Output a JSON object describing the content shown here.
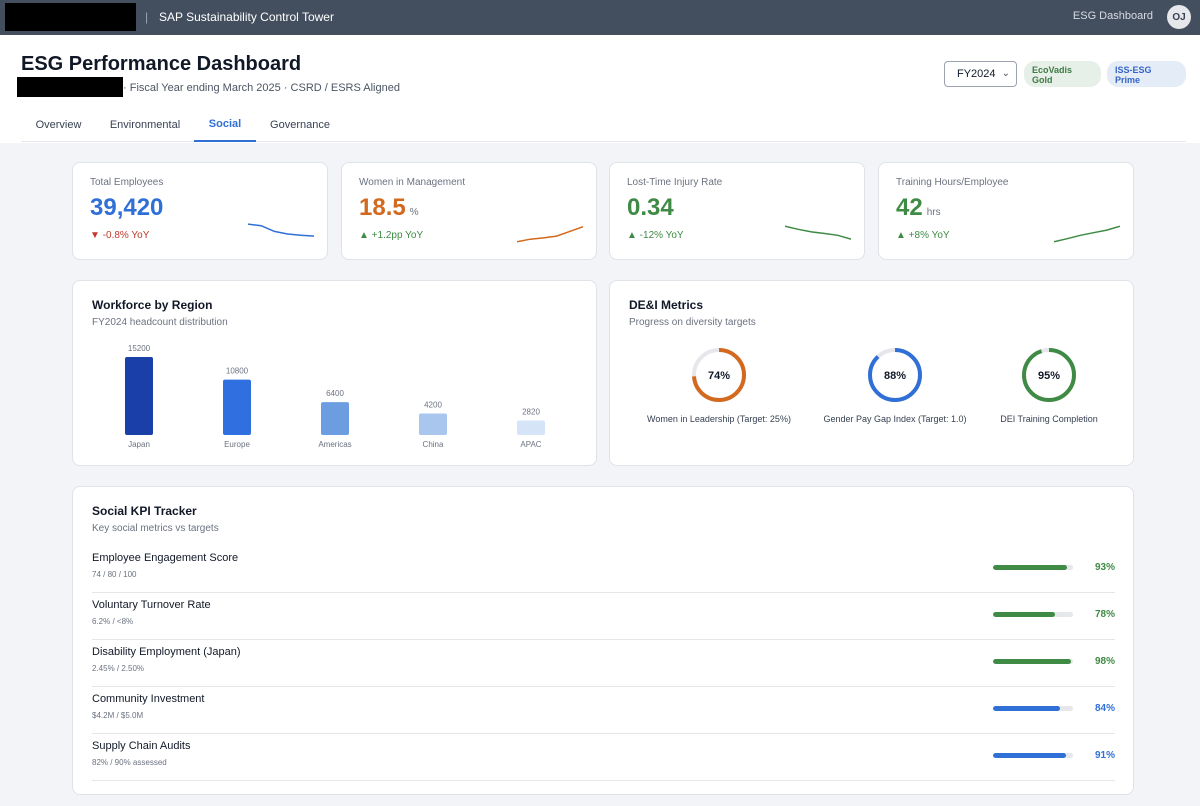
{
  "app": {
    "title": "SAP Sustainability Control Tower",
    "separator": "|",
    "nav_link": "ESG Dashboard",
    "avatar_initials": "OJ"
  },
  "header": {
    "title": "ESG Performance Dashboard",
    "subtitle": "· Fiscal Year ending March 2025 · CSRD / ESRS Aligned",
    "fiscal_year": "FY2024",
    "badges": [
      "EcoVadis Gold",
      "ISS-ESG Prime"
    ],
    "tabs": [
      "Overview",
      "Environmental",
      "Social",
      "Governance"
    ],
    "active_tab": "Social"
  },
  "kpis": [
    {
      "label": "Total Employees",
      "value": "39,420",
      "unit": "",
      "change": "▼ -0.8% YoY",
      "value_color": "#2f6fd6",
      "change_color": "#c0392b",
      "spark_color": "#2f6fd6",
      "spark": [
        0.88,
        0.82,
        0.6,
        0.5,
        0.45,
        0.42
      ]
    },
    {
      "label": "Women in Management",
      "value": "18.5",
      "unit": "%",
      "change": "▲ +1.2pp YoY",
      "value_color": "#d2691e",
      "change_color": "#3f8a44",
      "spark_color": "#d2691e",
      "spark": [
        0.2,
        0.3,
        0.35,
        0.42,
        0.6,
        0.78
      ]
    },
    {
      "label": "Lost-Time Injury Rate",
      "value": "0.34",
      "unit": "",
      "change": "▲ -12% YoY",
      "value_color": "#3f8a44",
      "change_color": "#3f8a44",
      "spark_color": "#3f8a44",
      "spark": [
        0.8,
        0.68,
        0.58,
        0.52,
        0.45,
        0.3
      ]
    },
    {
      "label": "Training Hours/Employee",
      "value": "42",
      "unit": "hrs",
      "change": "▲ +8% YoY",
      "value_color": "#3f8a44",
      "change_color": "#3f8a44",
      "spark_color": "#3f8a44",
      "spark": [
        0.2,
        0.32,
        0.45,
        0.55,
        0.65,
        0.8
      ]
    }
  ],
  "workforce": {
    "title": "Workforce by Region",
    "subtitle": "FY2024 headcount distribution"
  },
  "dei": {
    "title": "DE&I Metrics",
    "subtitle": "Progress on diversity targets",
    "items": [
      {
        "value": 74,
        "display": "74%",
        "label": "Women in Leadership (Target: 25%)",
        "color": "#d2691e"
      },
      {
        "value": 88,
        "display": "88%",
        "label": "Gender Pay Gap Index (Target: 1.0)",
        "color": "#2f6fd6"
      },
      {
        "value": 95,
        "display": "95%",
        "label": "DEI Training Completion",
        "color": "#3f8a44"
      }
    ]
  },
  "tracker": {
    "title": "Social KPI Tracker",
    "subtitle": "Key social metrics vs targets",
    "rows": [
      {
        "name": "Employee Engagement Score",
        "detail": "74 / 80 / 100",
        "pct": 93,
        "display": "93%",
        "color": "#3f8a44"
      },
      {
        "name": "Voluntary Turnover Rate",
        "detail": "6.2% / <8%",
        "pct": 78,
        "display": "78%",
        "color": "#3f8a44"
      },
      {
        "name": "Disability Employment (Japan)",
        "detail": "2.45% / 2.50%",
        "pct": 98,
        "display": "98%",
        "color": "#3f8a44"
      },
      {
        "name": "Community Investment",
        "detail": "$4.2M / $5.0M",
        "pct": 84,
        "display": "84%",
        "color": "#2f6fd6"
      },
      {
        "name": "Supply Chain Audits",
        "detail": "82% / 90% assessed",
        "pct": 91,
        "display": "91%",
        "color": "#2f6fd6"
      }
    ]
  },
  "chart_data": {
    "type": "bar",
    "categories": [
      "Japan",
      "Europe",
      "Americas",
      "China",
      "APAC"
    ],
    "values": [
      15200,
      10800,
      6400,
      4200,
      2820
    ],
    "bar_colors": [
      "#1a3fa8",
      "#2f6fe0",
      "#6b9de0",
      "#a8c6ee",
      "#d6e4f7"
    ],
    "title": "Workforce by Region",
    "subtitle": "FY2024 headcount distribution",
    "ylim": [
      0,
      15200
    ],
    "grid": false,
    "legend": "none"
  }
}
